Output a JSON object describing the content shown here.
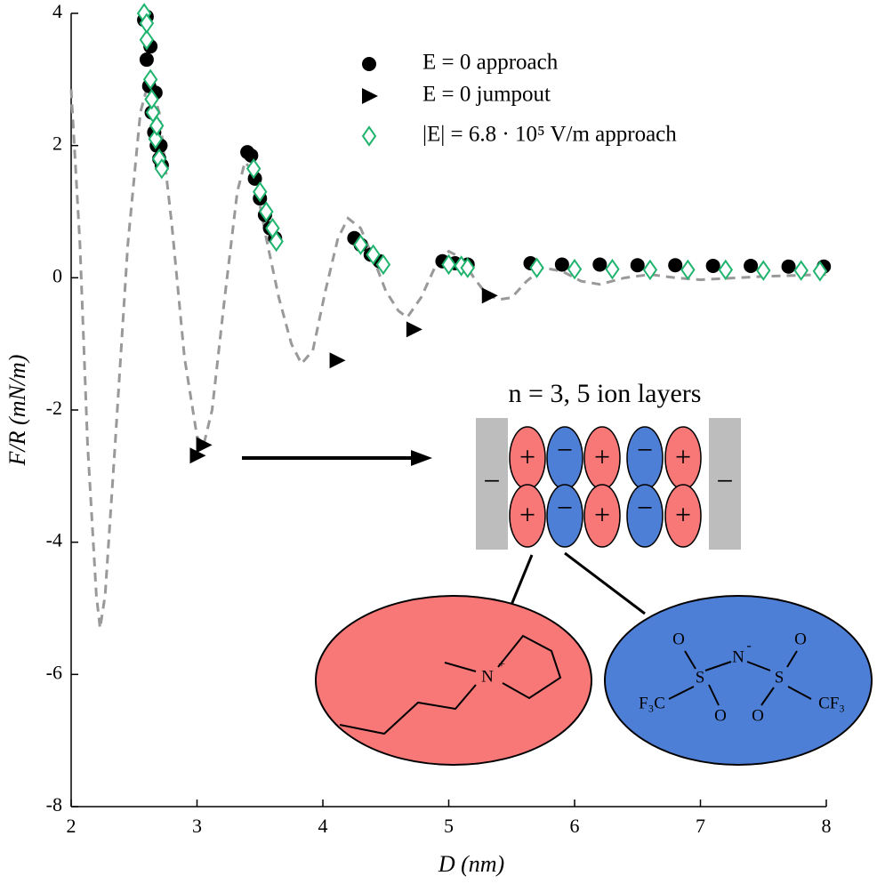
{
  "chart_data": {
    "type": "scatter",
    "xlabel": "D (nm)",
    "ylabel": "F/R (mN/m)",
    "xlim": [
      2,
      8
    ],
    "ylim": [
      -8,
      4
    ],
    "xticks": [
      2,
      3,
      4,
      5,
      6,
      7,
      8
    ],
    "yticks": [
      -8,
      -6,
      -4,
      -2,
      0,
      2,
      4
    ],
    "grid": false,
    "legend": "upper-right",
    "series": [
      {
        "color": "#999999",
        "style": "dashed",
        "x": [
          2.0,
          2.07,
          2.13,
          2.2,
          2.23,
          2.27,
          2.35,
          2.45,
          2.55,
          2.62,
          2.7,
          2.8,
          2.9,
          3.0,
          3.05,
          3.12,
          3.22,
          3.32,
          3.38,
          3.45,
          3.55,
          3.65,
          3.75,
          3.83,
          3.92,
          4.02,
          4.12,
          4.2,
          4.3,
          4.4,
          4.5,
          4.6,
          4.67,
          4.78,
          4.9,
          5.0,
          5.1,
          5.2,
          5.3,
          5.4,
          5.5,
          5.62,
          5.75,
          5.9,
          6.05,
          6.2,
          6.4,
          6.6,
          6.8,
          7.0,
          7.5,
          8.0
        ],
        "values": [
          2.85,
          0.5,
          -2.5,
          -4.8,
          -5.3,
          -4.8,
          -2.5,
          0.5,
          2.5,
          3.0,
          2.5,
          0.8,
          -1.2,
          -2.4,
          -2.55,
          -2.0,
          -0.3,
          1.3,
          1.75,
          1.6,
          0.6,
          -0.3,
          -1.0,
          -1.3,
          -1.1,
          -0.2,
          0.6,
          0.9,
          0.75,
          0.3,
          -0.2,
          -0.5,
          -0.6,
          -0.3,
          0.2,
          0.4,
          0.3,
          0.0,
          -0.25,
          -0.33,
          -0.3,
          -0.05,
          0.15,
          0.1,
          -0.05,
          -0.1,
          0.0,
          0.05,
          0.0,
          -0.03,
          0.02,
          0.05
        ]
      },
      {
        "name": "E = 0 approach",
        "color": "#000000",
        "marker": "circle",
        "x": [
          2.58,
          2.6,
          2.62,
          2.64,
          2.66,
          2.68,
          2.7,
          2.72,
          2.6,
          2.63,
          2.67,
          2.71,
          3.4,
          3.43,
          3.46,
          3.5,
          3.54,
          3.58,
          3.62,
          4.25,
          4.3,
          4.38,
          4.45,
          4.95,
          5.05,
          5.15,
          5.65,
          5.9,
          6.2,
          6.5,
          6.8,
          7.1,
          7.4,
          7.7,
          7.98
        ],
        "values": [
          3.9,
          3.3,
          2.9,
          2.5,
          2.2,
          2.0,
          1.8,
          1.7,
          3.95,
          3.5,
          2.8,
          2.0,
          1.9,
          1.85,
          1.5,
          1.2,
          0.95,
          0.75,
          0.6,
          0.6,
          0.5,
          0.35,
          0.25,
          0.25,
          0.22,
          0.2,
          0.22,
          0.2,
          0.2,
          0.19,
          0.19,
          0.18,
          0.18,
          0.17,
          0.17
        ]
      },
      {
        "name": "E = 0 jumpout",
        "color": "#000000",
        "marker": "triangle",
        "x": [
          3.0,
          3.05,
          4.11,
          4.72,
          5.32
        ],
        "values": [
          -2.69,
          -2.53,
          -1.25,
          -0.78,
          -0.27
        ]
      },
      {
        "name": "|E| = 6.8 · 10⁵ V/m approach",
        "color": "#1fb46e",
        "marker": "diamond",
        "x": [
          2.58,
          2.6,
          2.63,
          2.65,
          2.67,
          2.7,
          2.72,
          2.6,
          2.64,
          2.68,
          3.45,
          3.5,
          3.55,
          3.6,
          3.63,
          4.3,
          4.4,
          4.48,
          5.0,
          5.1,
          5.15,
          5.7,
          6.0,
          6.3,
          6.6,
          6.9,
          7.2,
          7.5,
          7.8,
          7.95
        ],
        "values": [
          4.0,
          3.6,
          3.0,
          2.5,
          2.1,
          1.8,
          1.65,
          3.85,
          2.7,
          2.3,
          1.65,
          1.3,
          1.0,
          0.75,
          0.55,
          0.5,
          0.35,
          0.2,
          0.2,
          0.18,
          0.15,
          0.15,
          0.13,
          0.13,
          0.12,
          0.12,
          0.12,
          0.11,
          0.11,
          0.1
        ]
      }
    ],
    "annotation": "n = 3, 5 ion layers",
    "inset": {
      "wall_sign": "−",
      "cation_sign": "+",
      "anion_sign": "−",
      "cation_labels": [
        "N",
        "+"
      ],
      "anion_labels": [
        "O",
        "O",
        "N",
        "-",
        "S",
        "S",
        "O",
        "O",
        "F₃C",
        "CF₃"
      ]
    }
  }
}
